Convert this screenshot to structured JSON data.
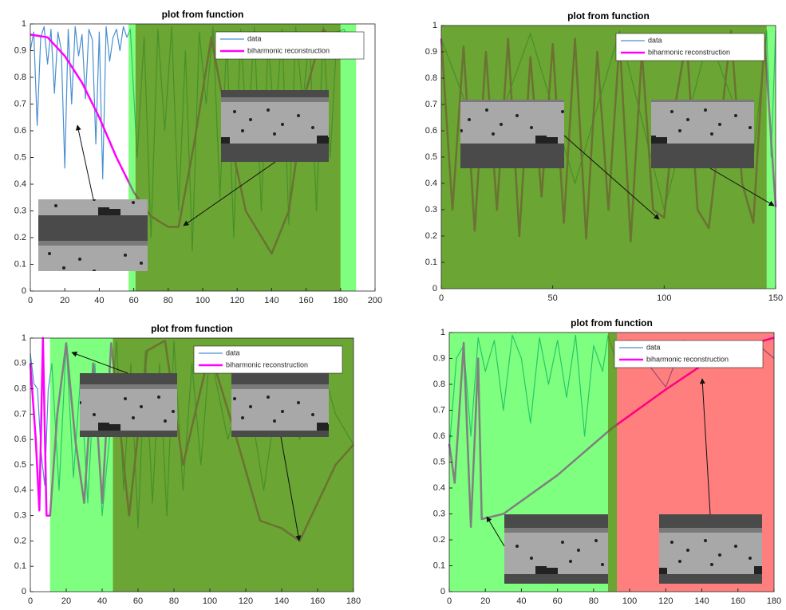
{
  "chart_data": [
    {
      "type": "line",
      "title": "plot from function",
      "legend": "upper right",
      "xlim": [
        0,
        200
      ],
      "xticks": [
        0,
        20,
        40,
        60,
        80,
        100,
        120,
        140,
        160,
        180,
        200
      ],
      "ylim": [
        0,
        1
      ],
      "yticks": [
        0,
        0.1,
        0.2,
        0.3,
        0.4,
        0.5,
        0.6,
        0.7,
        0.8,
        0.9,
        1
      ],
      "regions": [
        {
          "x": [
            57,
            61
          ],
          "color": "#00ff0080"
        },
        {
          "x": [
            61,
            180
          ],
          "color": "#468e00cc"
        },
        {
          "x": [
            180,
            189
          ],
          "color": "#00ff0080"
        }
      ],
      "series": [
        {
          "name": "data",
          "color": "#4a8fd0",
          "x": [
            0,
            2,
            4,
            6,
            8,
            10,
            12,
            14,
            16,
            18,
            20,
            22,
            24,
            26,
            28,
            30,
            32,
            34,
            36,
            38,
            40,
            42,
            44,
            46,
            48,
            50,
            52,
            54,
            56,
            58,
            62,
            66,
            70,
            74,
            78,
            82,
            86,
            90,
            94,
            98,
            102,
            106,
            110,
            114,
            118,
            122,
            126,
            130,
            134,
            138,
            142,
            146,
            150,
            154,
            158,
            162,
            166,
            170,
            174,
            178,
            182,
            186,
            190
          ],
          "values": [
            0.9,
            0.97,
            0.62,
            0.95,
            0.99,
            0.85,
            0.98,
            0.74,
            0.97,
            0.9,
            0.46,
            0.98,
            0.7,
            0.99,
            0.88,
            0.96,
            0.72,
            0.98,
            0.94,
            0.55,
            0.97,
            0.42,
            0.99,
            0.86,
            0.95,
            0.98,
            0.9,
            0.99,
            0.95,
            0.98,
            0.5,
            0.95,
            0.2,
            0.98,
            0.6,
            0.99,
            0.3,
            0.9,
            0.15,
            0.97,
            0.7,
            0.99,
            0.35,
            0.95,
            0.2,
            0.98,
            0.55,
            0.99,
            0.3,
            0.93,
            0.6,
            0.98,
            0.25,
            0.99,
            0.7,
            0.96,
            0.3,
            0.99,
            0.5,
            0.97,
            0.98,
            0.92,
            0.97
          ]
        },
        {
          "name": "biharmonic reconstruction",
          "color": "#ff00ff",
          "x": [
            0,
            10,
            20,
            30,
            40,
            50,
            60,
            70,
            80,
            86,
            95,
            105,
            115,
            125,
            140,
            150,
            160,
            170,
            180
          ],
          "values": [
            0.96,
            0.95,
            0.88,
            0.78,
            0.65,
            0.5,
            0.37,
            0.28,
            0.24,
            0.24,
            0.55,
            0.95,
            0.6,
            0.3,
            0.14,
            0.3,
            0.75,
            0.98,
            0.9
          ]
        }
      ]
    },
    {
      "type": "line",
      "title": "plot from function",
      "legend": "upper right",
      "xlim": [
        0,
        150
      ],
      "xticks": [
        0,
        50,
        100,
        150
      ],
      "ylim": [
        0,
        1
      ],
      "yticks": [
        0,
        0.1,
        0.2,
        0.3,
        0.4,
        0.5,
        0.6,
        0.7,
        0.8,
        0.9,
        1
      ],
      "regions": [
        {
          "x": [
            0,
            146
          ],
          "color": "#468e00cc"
        },
        {
          "x": [
            146,
            150
          ],
          "color": "#00ff0080"
        }
      ],
      "series": [
        {
          "name": "data",
          "color": "#4a8fd0",
          "x": [
            0,
            20,
            40,
            60,
            80,
            100,
            120,
            140,
            146,
            148,
            150
          ],
          "values": [
            0.95,
            0.5,
            0.97,
            0.4,
            0.98,
            0.3,
            0.96,
            0.5,
            0.98,
            0.5,
            0.98
          ]
        },
        {
          "name": "biharmonic reconstruction",
          "color": "#ff00ff",
          "x": [
            0,
            5,
            10,
            15,
            20,
            25,
            30,
            35,
            40,
            45,
            50,
            55,
            60,
            65,
            70,
            75,
            80,
            85,
            90,
            95,
            100,
            105,
            110,
            115,
            120,
            125,
            130,
            135,
            140,
            145,
            150
          ],
          "values": [
            0.95,
            0.3,
            0.92,
            0.22,
            0.9,
            0.3,
            0.95,
            0.2,
            0.88,
            0.35,
            0.93,
            0.25,
            0.95,
            0.19,
            0.9,
            0.3,
            0.95,
            0.18,
            0.9,
            0.3,
            0.27,
            0.7,
            0.95,
            0.3,
            0.23,
            0.6,
            0.98,
            0.4,
            0.25,
            0.95,
            0.31
          ]
        }
      ]
    },
    {
      "type": "line",
      "title": "plot from function",
      "legend": "upper right",
      "xlim": [
        0,
        180
      ],
      "xticks": [
        0,
        20,
        40,
        60,
        80,
        100,
        120,
        140,
        160,
        180
      ],
      "ylim": [
        0,
        1
      ],
      "yticks": [
        0,
        0.1,
        0.2,
        0.3,
        0.4,
        0.5,
        0.6,
        0.7,
        0.8,
        0.9,
        1
      ],
      "regions": [
        {
          "x": [
            11,
            46
          ],
          "color": "#00ff0080"
        },
        {
          "x": [
            46,
            180
          ],
          "color": "#468e00cc"
        }
      ],
      "series": [
        {
          "name": "data",
          "color": "#4a8fd0",
          "x": [
            0,
            2,
            4,
            6,
            8,
            10,
            12,
            16,
            20,
            24,
            28,
            32,
            36,
            40,
            44,
            48,
            52,
            56,
            60,
            64,
            68,
            72,
            76,
            80,
            85,
            90,
            95,
            100,
            110,
            120,
            130,
            140,
            150,
            160,
            170,
            180
          ],
          "values": [
            0.94,
            0.82,
            0.8,
            0.55,
            0.42,
            0.8,
            0.9,
            0.4,
            0.98,
            0.45,
            0.85,
            0.35,
            0.9,
            0.3,
            0.6,
            0.99,
            0.4,
            0.9,
            0.25,
            0.95,
            0.35,
            0.9,
            0.3,
            0.99,
            0.4,
            0.9,
            0.5,
            0.95,
            0.6,
            0.85,
            0.4,
            0.9,
            0.6,
            0.95,
            0.7,
            0.58
          ]
        },
        {
          "name": "biharmonic reconstruction",
          "color": "#ff00ff",
          "x": [
            0,
            3,
            5,
            7,
            9,
            11,
            15,
            20,
            25,
            30,
            35,
            40,
            45,
            55,
            65,
            75,
            85,
            100,
            115,
            128,
            140,
            150,
            160,
            170,
            180
          ],
          "values": [
            0.9,
            0.6,
            0.32,
            1,
            0.3,
            0.3,
            0.7,
            0.98,
            0.6,
            0.35,
            0.9,
            0.35,
            0.98,
            0.3,
            0.95,
            0.99,
            0.5,
            0.95,
            0.6,
            0.28,
            0.25,
            0.2,
            0.35,
            0.5,
            0.58
          ]
        }
      ]
    },
    {
      "type": "line",
      "title": "plot from function",
      "legend": "upper right",
      "xlim": [
        0,
        180
      ],
      "xticks": [
        0,
        20,
        40,
        60,
        80,
        100,
        120,
        140,
        160,
        180
      ],
      "ylim": [
        0,
        1
      ],
      "yticks": [
        0,
        0.1,
        0.2,
        0.3,
        0.4,
        0.5,
        0.6,
        0.7,
        0.8,
        0.9,
        1
      ],
      "regions": [
        {
          "x": [
            0,
            88
          ],
          "color": "#00ff0080"
        },
        {
          "x": [
            88,
            93
          ],
          "color": "#468e00cc"
        },
        {
          "x": [
            93,
            180
          ],
          "color": "#ff000080"
        }
      ],
      "series": [
        {
          "name": "data",
          "color": "#4a8fd0",
          "x": [
            0,
            4,
            8,
            12,
            16,
            20,
            25,
            30,
            35,
            40,
            45,
            50,
            55,
            60,
            65,
            70,
            75,
            80,
            85,
            88,
            92,
            100,
            110,
            120,
            130,
            140,
            150,
            160,
            170,
            180
          ],
          "values": [
            0.55,
            0.9,
            0.95,
            0.6,
            0.98,
            0.85,
            0.97,
            0.7,
            0.99,
            0.9,
            0.65,
            0.98,
            0.8,
            0.97,
            0.75,
            0.99,
            0.6,
            0.95,
            0.85,
            0.99,
            0.9,
            0.97,
            0.88,
            0.79,
            0.97,
            0.9,
            0.95,
            0.92,
            0.96,
            0.9
          ]
        },
        {
          "name": "biharmonic reconstruction",
          "color": "#ff00ff",
          "x": [
            0,
            3,
            8,
            12,
            16,
            18,
            30,
            60,
            90,
            120,
            150,
            180
          ],
          "values": [
            0.57,
            0.42,
            0.96,
            0.25,
            0.9,
            0.28,
            0.3,
            0.45,
            0.63,
            0.78,
            0.92,
            0.98
          ]
        }
      ]
    }
  ]
}
